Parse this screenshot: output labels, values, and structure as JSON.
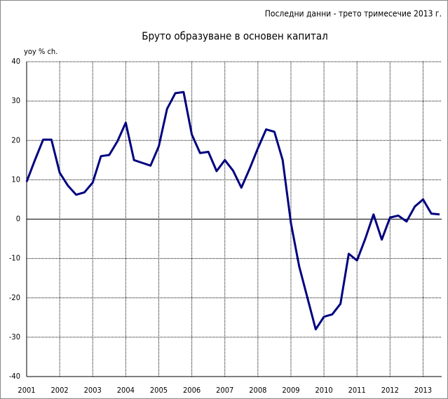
{
  "chart_data": {
    "type": "line",
    "title": "Бруто образуване в основен капитал",
    "subtitle": "Последни данни - трето тримесечие 2013 г.",
    "y_label": "yoy % ch.",
    "categories": [
      "2001",
      null,
      null,
      null,
      "2002",
      null,
      null,
      null,
      "2003",
      null,
      null,
      null,
      "2004",
      null,
      null,
      null,
      "2005",
      null,
      null,
      null,
      "2006",
      null,
      null,
      null,
      "2007",
      null,
      null,
      null,
      "2008",
      null,
      null,
      null,
      "2009",
      null,
      null,
      null,
      "2010",
      null,
      null,
      null,
      "2011",
      null,
      null,
      null,
      "2012",
      null,
      null,
      null,
      "2013",
      null,
      null
    ],
    "series": [
      {
        "name": "Бруто образуване в основен капитал",
        "color": "#000080",
        "values": [
          9.5,
          15,
          20.2,
          20.2,
          11.8,
          8.5,
          6.2,
          6.8,
          9.3,
          16,
          16.3,
          19.8,
          24.5,
          15,
          14.3,
          13.6,
          18.5,
          28,
          32,
          32.3,
          21.5,
          16.8,
          17.1,
          12.2,
          15,
          12.3,
          8,
          12.8,
          18,
          22.8,
          22.2,
          15,
          -1,
          -12,
          -20,
          -28,
          -24.8,
          -24.2,
          -21.5,
          -8.8,
          -10.5,
          -5,
          1.2,
          -5.2,
          0.4,
          0.9,
          -0.6,
          3.2,
          5,
          1.4,
          1.2
        ]
      }
    ],
    "ylim": [
      -40,
      40
    ],
    "yticks": [
      -40,
      -30,
      -20,
      -10,
      0,
      10,
      20,
      30,
      40
    ],
    "grid": true
  }
}
